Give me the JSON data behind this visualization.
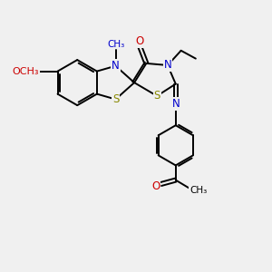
{
  "background_color": "#f0f0f0",
  "bond_color": "#000000",
  "atom_colors": {
    "N": "#0000cc",
    "O": "#cc0000",
    "S": "#888800",
    "C": "#000000"
  },
  "font_size": 8.5,
  "lw": 1.4,
  "figsize": [
    3.0,
    3.0
  ],
  "dpi": 100,
  "xlim": [
    0,
    10
  ],
  "ylim": [
    0,
    10
  ]
}
